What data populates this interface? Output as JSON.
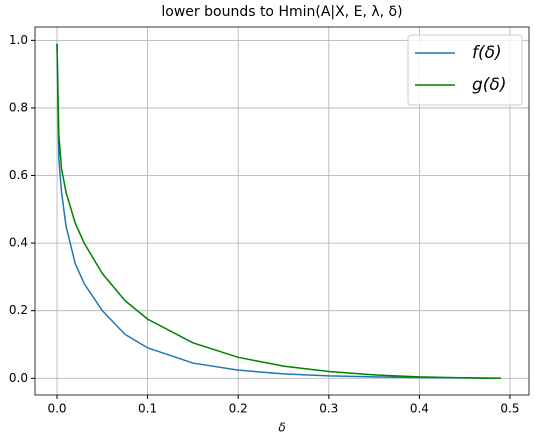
{
  "chart_data": {
    "type": "line",
    "title": "lower bounds to Hmin(A|X, E, λ, δ)",
    "x_label": "δ",
    "x": [
      0,
      0.002,
      0.005,
      0.01,
      0.02,
      0.03,
      0.05,
      0.075,
      0.1,
      0.15,
      0.2,
      0.25,
      0.3,
      0.35,
      0.4,
      0.45,
      0.49
    ],
    "series": [
      {
        "name": "f(δ)",
        "color": "#1f77b4",
        "values": [
          0.99,
          0.65,
          0.55,
          0.45,
          0.34,
          0.28,
          0.2,
          0.13,
          0.09,
          0.045,
          0.024,
          0.013,
          0.007,
          0.004,
          0.002,
          0.001,
          0
        ]
      },
      {
        "name": "g(δ)",
        "color": "#008000",
        "values": [
          0.99,
          0.72,
          0.62,
          0.55,
          0.46,
          0.4,
          0.31,
          0.23,
          0.175,
          0.105,
          0.062,
          0.036,
          0.02,
          0.01,
          0.004,
          0.001,
          0
        ]
      }
    ],
    "xlim": [
      -0.0243,
      0.521
    ],
    "ylim": [
      -0.0495,
      1.0395
    ],
    "xticks": [
      {
        "value": 0,
        "label": "0.0"
      },
      {
        "value": 0.1,
        "label": "0.1"
      },
      {
        "value": 0.2,
        "label": "0.2"
      },
      {
        "value": 0.3,
        "label": "0.3"
      },
      {
        "value": 0.4,
        "label": "0.4"
      },
      {
        "value": 0.5,
        "label": "0.5"
      }
    ],
    "yticks": [
      {
        "value": 0,
        "label": "0.0"
      },
      {
        "value": 0.2,
        "label": "0.2"
      },
      {
        "value": 0.4,
        "label": "0.4"
      },
      {
        "value": 0.6,
        "label": "0.6"
      },
      {
        "value": 0.8,
        "label": "0.8"
      },
      {
        "value": 1,
        "label": "1.0"
      }
    ],
    "grid": true,
    "legend": "upper right"
  }
}
